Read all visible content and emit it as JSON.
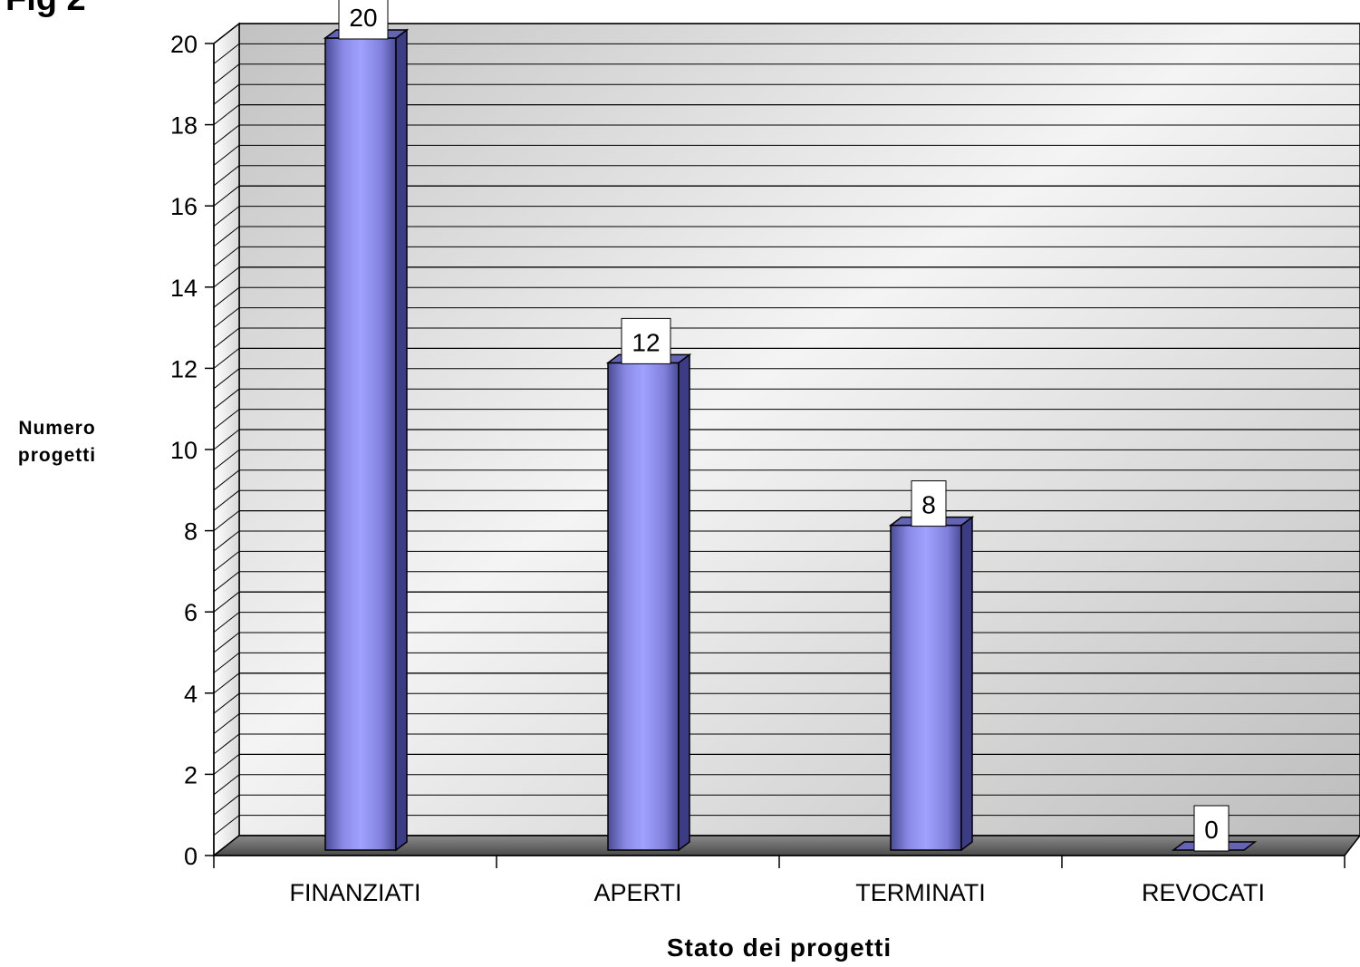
{
  "figure_label": "Fig 2",
  "chart_data": {
    "type": "bar",
    "title": "",
    "xlabel": "Stato dei progetti",
    "ylabel": "Numero progetti",
    "categories": [
      "FINANZIATI",
      "APERTI",
      "TERMINATI",
      "REVOCATI"
    ],
    "values": [
      20,
      12,
      8,
      0
    ],
    "data_labels": [
      "20",
      "12",
      "8",
      "0"
    ],
    "ylim": [
      0,
      20
    ],
    "yticks": [
      0,
      2,
      4,
      6,
      8,
      10,
      12,
      14,
      16,
      18,
      20
    ],
    "ytick_labels": [
      "0",
      "2",
      "4",
      "6",
      "8",
      "10",
      "12",
      "14",
      "16",
      "18",
      "20"
    ],
    "grid": true,
    "legend": "none",
    "colors": {
      "bar_front": "#9a9aff",
      "bar_dark": "#3c3c84",
      "bar_top": "#6464b4"
    }
  }
}
